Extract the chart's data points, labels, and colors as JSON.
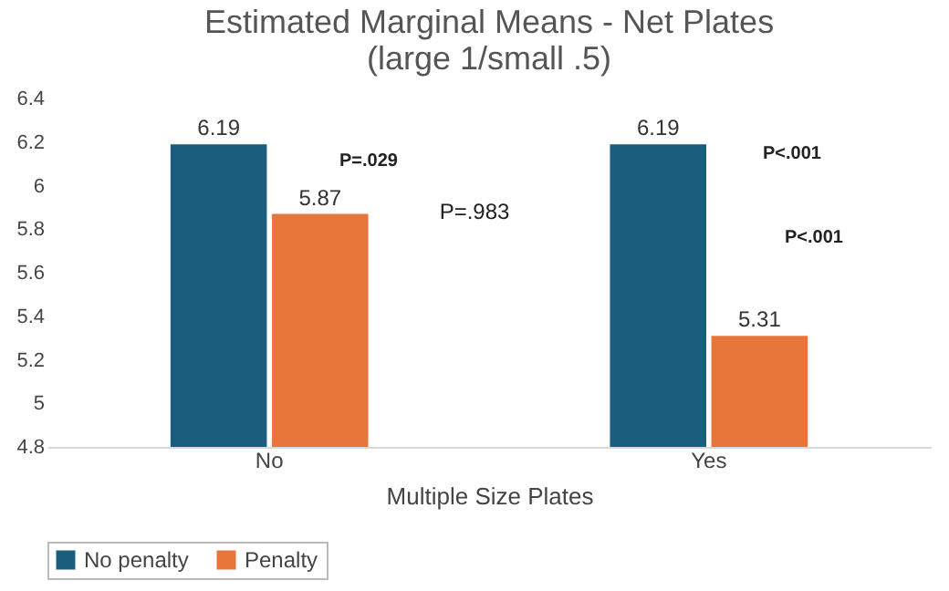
{
  "chart_data": {
    "type": "bar",
    "title": "Estimated Marginal Means - Net Plates\n(large 1/small .5)",
    "xlabel": "Multiple Size Plates",
    "categories": [
      "No",
      "Yes"
    ],
    "series": [
      {
        "name": "No penalty",
        "color": "#1b5d7d",
        "values": [
          6.19,
          6.19
        ]
      },
      {
        "name": "Penalty",
        "color": "#e8763a",
        "values": [
          5.87,
          5.31
        ]
      }
    ],
    "ylim": [
      4.8,
      6.4
    ],
    "yticks": [
      4.8,
      5,
      5.2,
      5.4,
      5.6,
      5.8,
      6,
      6.2,
      6.4
    ],
    "grid": false,
    "legend": "bottom",
    "data_labels": true,
    "annotations": [
      "P=.029",
      "P=.983",
      "P<.001",
      "P<.001"
    ]
  }
}
